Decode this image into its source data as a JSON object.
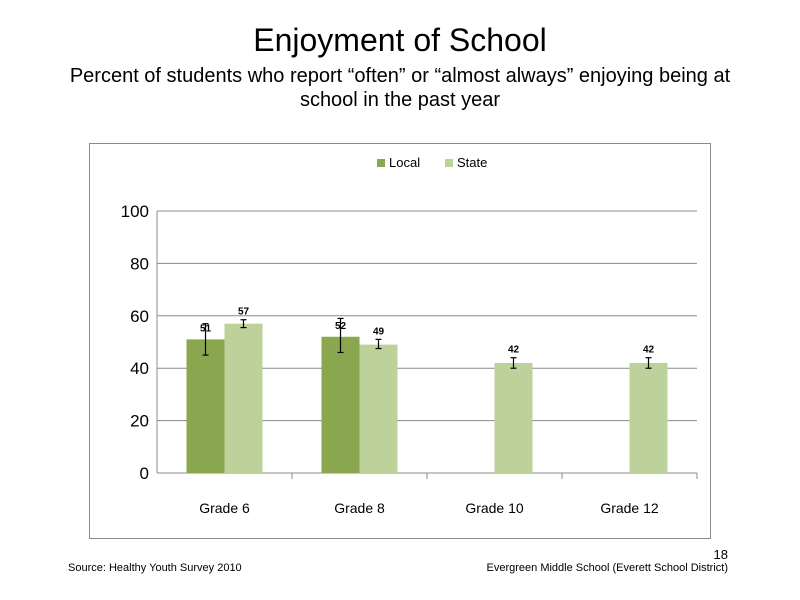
{
  "slide": {
    "title": "Enjoyment of School",
    "subtitle": "Percent of students who report “often” or “almost always” enjoying being at school in the past year",
    "page_number": "18",
    "source": "Source: Healthy Youth Survey 2010",
    "school": "Evergreen Middle School (Everett School District)"
  },
  "chart_data": {
    "type": "bar",
    "title": "",
    "xlabel": "",
    "ylabel": "",
    "categories": [
      "Grade 6",
      "Grade 8",
      "Grade 10",
      "Grade 12"
    ],
    "ylim": [
      0,
      100
    ],
    "yticks": [
      "0",
      "20",
      "40",
      "60",
      "80",
      "100"
    ],
    "grid": true,
    "legend_position": "top",
    "series": [
      {
        "name": "Local",
        "color": "#8aa64f",
        "values": [
          51,
          52,
          null,
          null
        ],
        "labels": [
          "51",
          "52",
          "",
          ""
        ],
        "error_low": [
          45,
          46,
          null,
          null
        ],
        "error_high": [
          57,
          59,
          null,
          null
        ]
      },
      {
        "name": "State",
        "color": "#bdd29a",
        "values": [
          57,
          49,
          42,
          42
        ],
        "labels": [
          "57",
          "49",
          "42",
          "42"
        ],
        "error_low": [
          55.5,
          47.5,
          40,
          40
        ],
        "error_high": [
          58.5,
          51,
          44,
          44
        ]
      }
    ]
  }
}
